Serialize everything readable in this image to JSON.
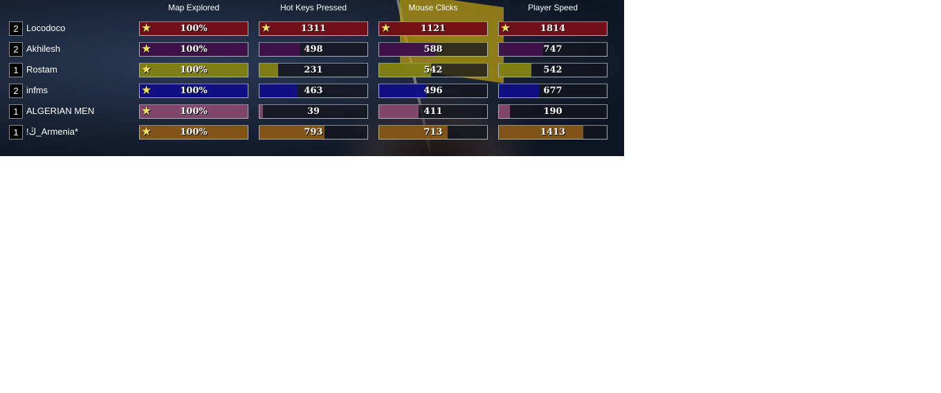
{
  "headers": [
    "Map Explored",
    "Hot Keys Pressed",
    "Mouse Clicks",
    "Player Speed"
  ],
  "players": [
    {
      "team": "2",
      "name": "Locodoco",
      "color": "#7c1016",
      "stats": [
        "100%",
        "1311",
        "1121",
        "1814"
      ],
      "values": [
        100,
        1311,
        1121,
        1814
      ],
      "stars": [
        true,
        true,
        true,
        true
      ]
    },
    {
      "team": "2",
      "name": "Akhilesh",
      "color": "#40124c",
      "stats": [
        "100%",
        "498",
        "588",
        "747"
      ],
      "values": [
        100,
        498,
        588,
        747
      ],
      "stars": [
        true,
        false,
        false,
        false
      ]
    },
    {
      "team": "1",
      "name": "Rostam",
      "color": "#8a8a12",
      "stats": [
        "100%",
        "231",
        "542",
        "542"
      ],
      "values": [
        100,
        231,
        542,
        542
      ],
      "stars": [
        true,
        false,
        false,
        false
      ]
    },
    {
      "team": "2",
      "name": "infms",
      "color": "#10108e",
      "stats": [
        "100%",
        "463",
        "496",
        "677"
      ],
      "values": [
        100,
        463,
        496,
        677
      ],
      "stars": [
        true,
        false,
        false,
        false
      ]
    },
    {
      "team": "1",
      "name": "ALGERIAN MEN",
      "color": "#8c4c72",
      "stats": [
        "100%",
        "39",
        "411",
        "190"
      ],
      "values": [
        100,
        39,
        411,
        190
      ],
      "stars": [
        true,
        false,
        false,
        false
      ]
    },
    {
      "team": "1",
      "name": "!ڭ_Armenia*",
      "color": "#8c5a16",
      "stats": [
        "100%",
        "793",
        "713",
        "1413"
      ],
      "values": [
        100,
        793,
        713,
        1413
      ],
      "stars": [
        true,
        false,
        false,
        false
      ]
    }
  ],
  "column_max": [
    100,
    1311,
    1121,
    1814
  ],
  "star_icon": "star-icon"
}
